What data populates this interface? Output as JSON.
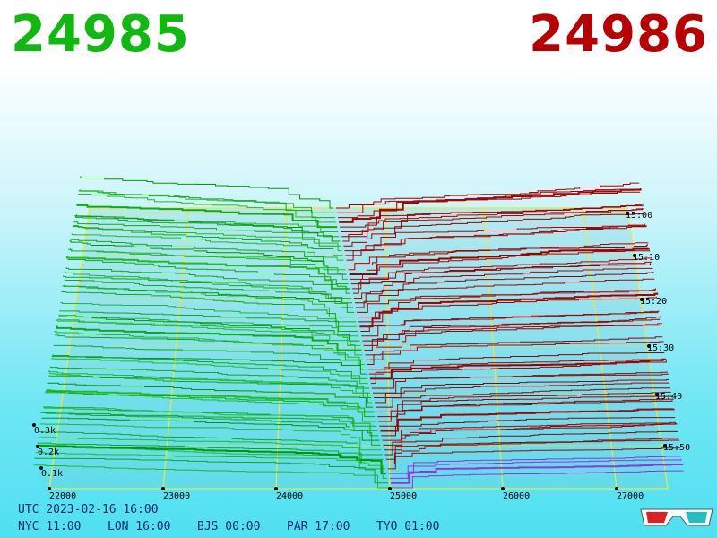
{
  "header": {
    "bid": "24985",
    "ask": "24986"
  },
  "price_axis": [
    "22000",
    "23000",
    "24000",
    "25000",
    "26000",
    "27000"
  ],
  "time_axis": [
    "15:00",
    "15:10",
    "15:20",
    "15:30",
    "15:40",
    "15:50"
  ],
  "volume_axis": [
    "0.3k",
    "0.2k",
    "0.1k"
  ],
  "footer": {
    "utc": "UTC 2023-02-16 16:00",
    "zones": [
      "NYC 11:00",
      "LON 16:00",
      "BJS 00:00",
      "PAR 17:00",
      "TYO 01:00"
    ]
  }
}
